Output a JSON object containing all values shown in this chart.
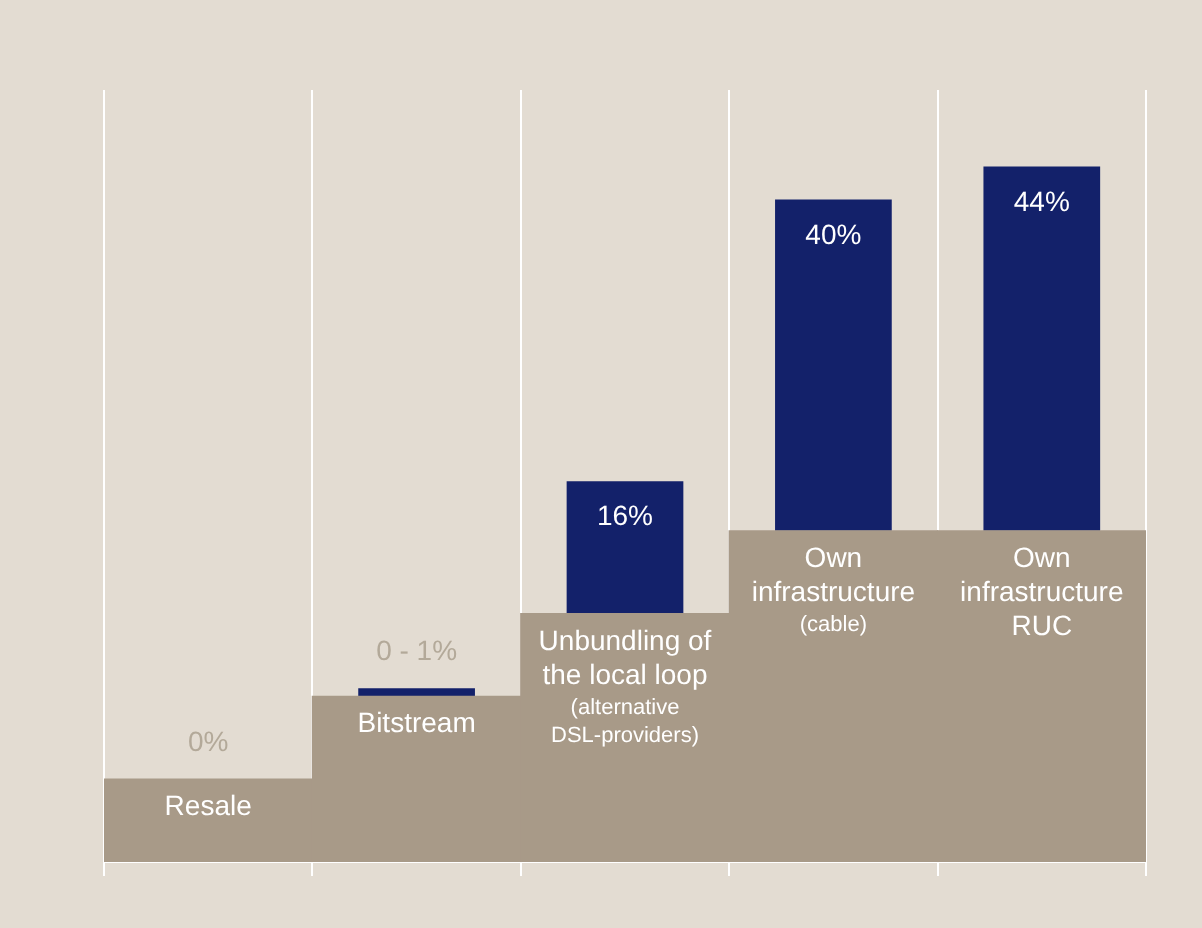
{
  "chart_data": {
    "type": "bar",
    "stacked": true,
    "categories": [
      "Resale",
      "Bitstream",
      "Unbundling of the local loop (alternative DSL-providers)",
      "Own infrastructure (cable)",
      "Own infrastructure RUC"
    ],
    "series": [
      {
        "color": "#a89a88",
        "values": [
          10,
          20,
          30,
          40,
          40
        ]
      },
      {
        "color": "#13216a",
        "values": [
          0,
          1,
          16,
          40,
          44
        ],
        "value_labels": [
          "0%",
          null,
          "16%",
          "40%",
          "44%"
        ]
      }
    ],
    "annotations": [
      {
        "text": "0 - 1%",
        "x": "Bitstream",
        "y": 21
      }
    ],
    "grid": "x",
    "legend": false
  }
}
